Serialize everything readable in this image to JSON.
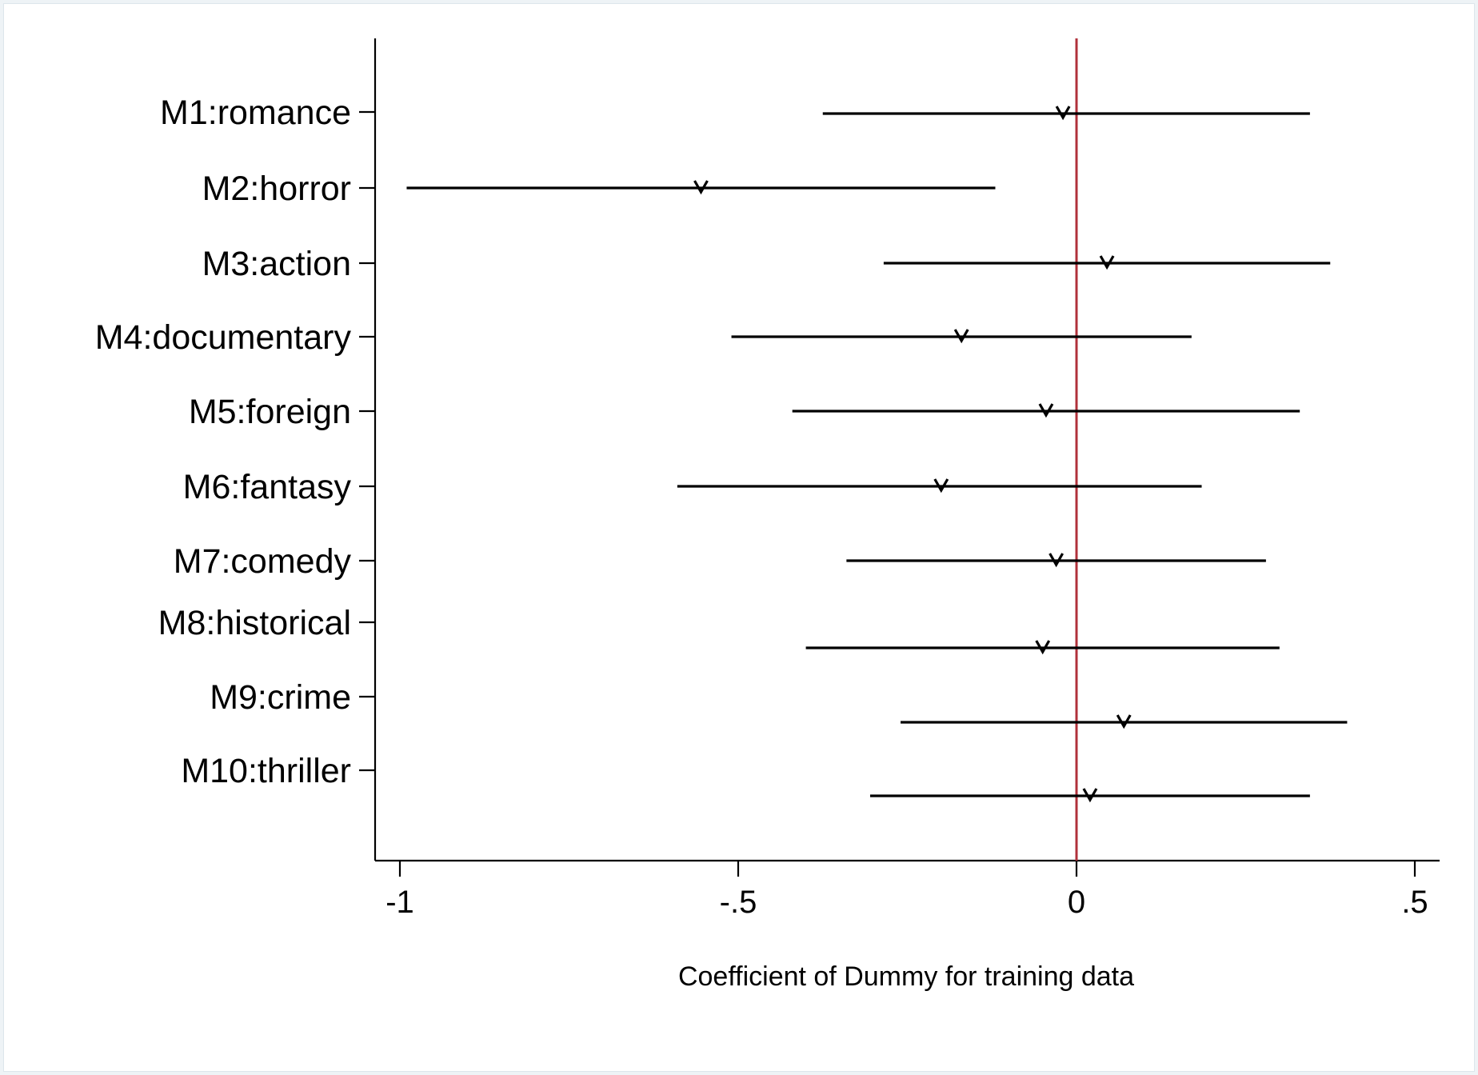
{
  "chart_data": {
    "type": "scatter",
    "subtype": "coefficient plot with confidence intervals",
    "title": "",
    "xlabel": "Coefficient of Dummy for training data",
    "ylabel": "",
    "xlim": [
      -1.04,
      0.54
    ],
    "xticks": [
      -1,
      -0.5,
      0,
      0.5
    ],
    "xtick_labels": [
      "-1",
      "-.5",
      "0",
      ".5"
    ],
    "reference_line": {
      "x": 0,
      "color": "#b0313b"
    },
    "marker": "triangle-down",
    "grid": false,
    "legend": "none",
    "series": [
      {
        "label": "M1:romance",
        "estimate": -0.02,
        "ci_low": -0.375,
        "ci_high": 0.345
      },
      {
        "label": "M2:horror",
        "estimate": -0.555,
        "ci_low": -0.99,
        "ci_high": -0.12
      },
      {
        "label": "M3:action",
        "estimate": 0.045,
        "ci_low": -0.285,
        "ci_high": 0.375
      },
      {
        "label": "M4:documentary",
        "estimate": -0.17,
        "ci_low": -0.51,
        "ci_high": 0.17
      },
      {
        "label": "M5:foreign",
        "estimate": -0.045,
        "ci_low": -0.42,
        "ci_high": 0.33
      },
      {
        "label": "M6:fantasy",
        "estimate": -0.2,
        "ci_low": -0.59,
        "ci_high": 0.185
      },
      {
        "label": "M7:comedy",
        "estimate": -0.03,
        "ci_low": -0.34,
        "ci_high": 0.28
      },
      {
        "label": "M8:historical",
        "estimate": -0.05,
        "ci_low": -0.4,
        "ci_high": 0.3
      },
      {
        "label": "M9:crime",
        "estimate": 0.07,
        "ci_low": -0.26,
        "ci_high": 0.4
      },
      {
        "label": "M10:thriller",
        "estimate": 0.02,
        "ci_low": -0.305,
        "ci_high": 0.345
      }
    ]
  }
}
